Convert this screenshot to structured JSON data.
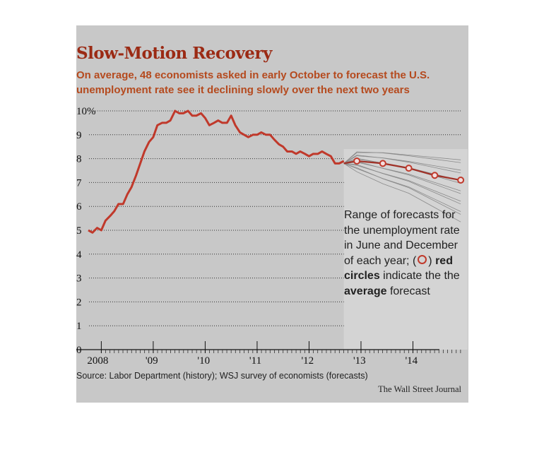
{
  "title": "Slow-Motion Recovery",
  "subtitle": "On average, 48 economists asked in early October to forecast the U.S. unemployment rate see it declining slowly over the next two years",
  "source": "Source: Labor Department (history); WSJ survey of economists (forecasts)",
  "credit": "The Wall Street Journal",
  "legend": {
    "part1": "Range of forecasts for the unemployment rate in June and December of each year; (",
    "part2": ") ",
    "red_circles": "red circles",
    "part3": " indicate the the ",
    "average": "average",
    "part4": " forecast"
  },
  "colors": {
    "history_line": "#c0392b",
    "forecast_range": "#888888",
    "average_marker": "#c0392b",
    "forecast_band": "#d4d4d4",
    "title": "#9b2a14"
  },
  "chart_data": {
    "type": "line",
    "title": "Slow-Motion Recovery",
    "xlabel": "",
    "ylabel": "",
    "ylim": [
      0,
      10
    ],
    "y_ticks": [
      0,
      1,
      2,
      3,
      4,
      5,
      6,
      7,
      8,
      9,
      10
    ],
    "y_tick_labels": [
      "0",
      "1",
      "2",
      "3",
      "4",
      "5",
      "6",
      "7",
      "8",
      "9",
      "10%"
    ],
    "x_tick_labels": [
      {
        "year": 2008.0,
        "label": "2008"
      },
      {
        "year": 2009.0,
        "label": "'09"
      },
      {
        "year": 2010.0,
        "label": "'10"
      },
      {
        "year": 2011.0,
        "label": "'11"
      },
      {
        "year": 2012.0,
        "label": "'12"
      },
      {
        "year": 2013.0,
        "label": "'13"
      },
      {
        "year": 2014.0,
        "label": "'14"
      }
    ],
    "xlim": [
      2007.75,
      2015.0
    ],
    "grid": "dotted horizontal",
    "series": [
      {
        "role": "history",
        "x": [
          2007.75,
          2007.83,
          2007.92,
          2008.0,
          2008.08,
          2008.17,
          2008.25,
          2008.33,
          2008.42,
          2008.5,
          2008.58,
          2008.67,
          2008.75,
          2008.83,
          2008.92,
          2009.0,
          2009.08,
          2009.17,
          2009.25,
          2009.33,
          2009.42,
          2009.5,
          2009.58,
          2009.67,
          2009.75,
          2009.83,
          2009.92,
          2010.0,
          2010.08,
          2010.17,
          2010.25,
          2010.33,
          2010.42,
          2010.5,
          2010.58,
          2010.67,
          2010.75,
          2010.83,
          2010.92,
          2011.0,
          2011.08,
          2011.17,
          2011.25,
          2011.33,
          2011.42,
          2011.5,
          2011.58,
          2011.67,
          2011.75,
          2011.83,
          2011.92,
          2012.0,
          2012.08,
          2012.17,
          2012.25,
          2012.33,
          2012.42,
          2012.5,
          2012.58,
          2012.67
        ],
        "values": [
          5.0,
          4.9,
          5.1,
          5.0,
          5.4,
          5.6,
          5.8,
          6.1,
          6.1,
          6.5,
          6.8,
          7.3,
          7.8,
          8.3,
          8.7,
          8.9,
          9.4,
          9.5,
          9.5,
          9.6,
          10.0,
          9.9,
          9.9,
          10.0,
          9.8,
          9.8,
          9.9,
          9.7,
          9.4,
          9.5,
          9.6,
          9.5,
          9.5,
          9.8,
          9.4,
          9.1,
          9.0,
          8.9,
          9.0,
          9.0,
          9.1,
          9.0,
          9.0,
          8.8,
          8.6,
          8.5,
          8.3,
          8.3,
          8.2,
          8.3,
          8.2,
          8.1,
          8.2,
          8.2,
          8.3,
          8.2,
          8.1,
          7.8,
          7.8,
          7.9
        ]
      },
      {
        "role": "average forecast",
        "x": [
          2012.67,
          2012.92,
          2013.42,
          2013.92,
          2014.42,
          2014.92
        ],
        "values": [
          7.8,
          7.9,
          7.8,
          7.6,
          7.3,
          7.1
        ]
      }
    ],
    "forecast_range": {
      "x": [
        2012.67,
        2012.92,
        2013.42,
        2013.92,
        2014.42,
        2014.92
      ],
      "low": [
        7.8,
        7.5,
        7.0,
        6.6,
        6.0,
        5.4
      ],
      "high": [
        7.8,
        8.3,
        8.3,
        8.2,
        8.1,
        8.0
      ]
    }
  }
}
